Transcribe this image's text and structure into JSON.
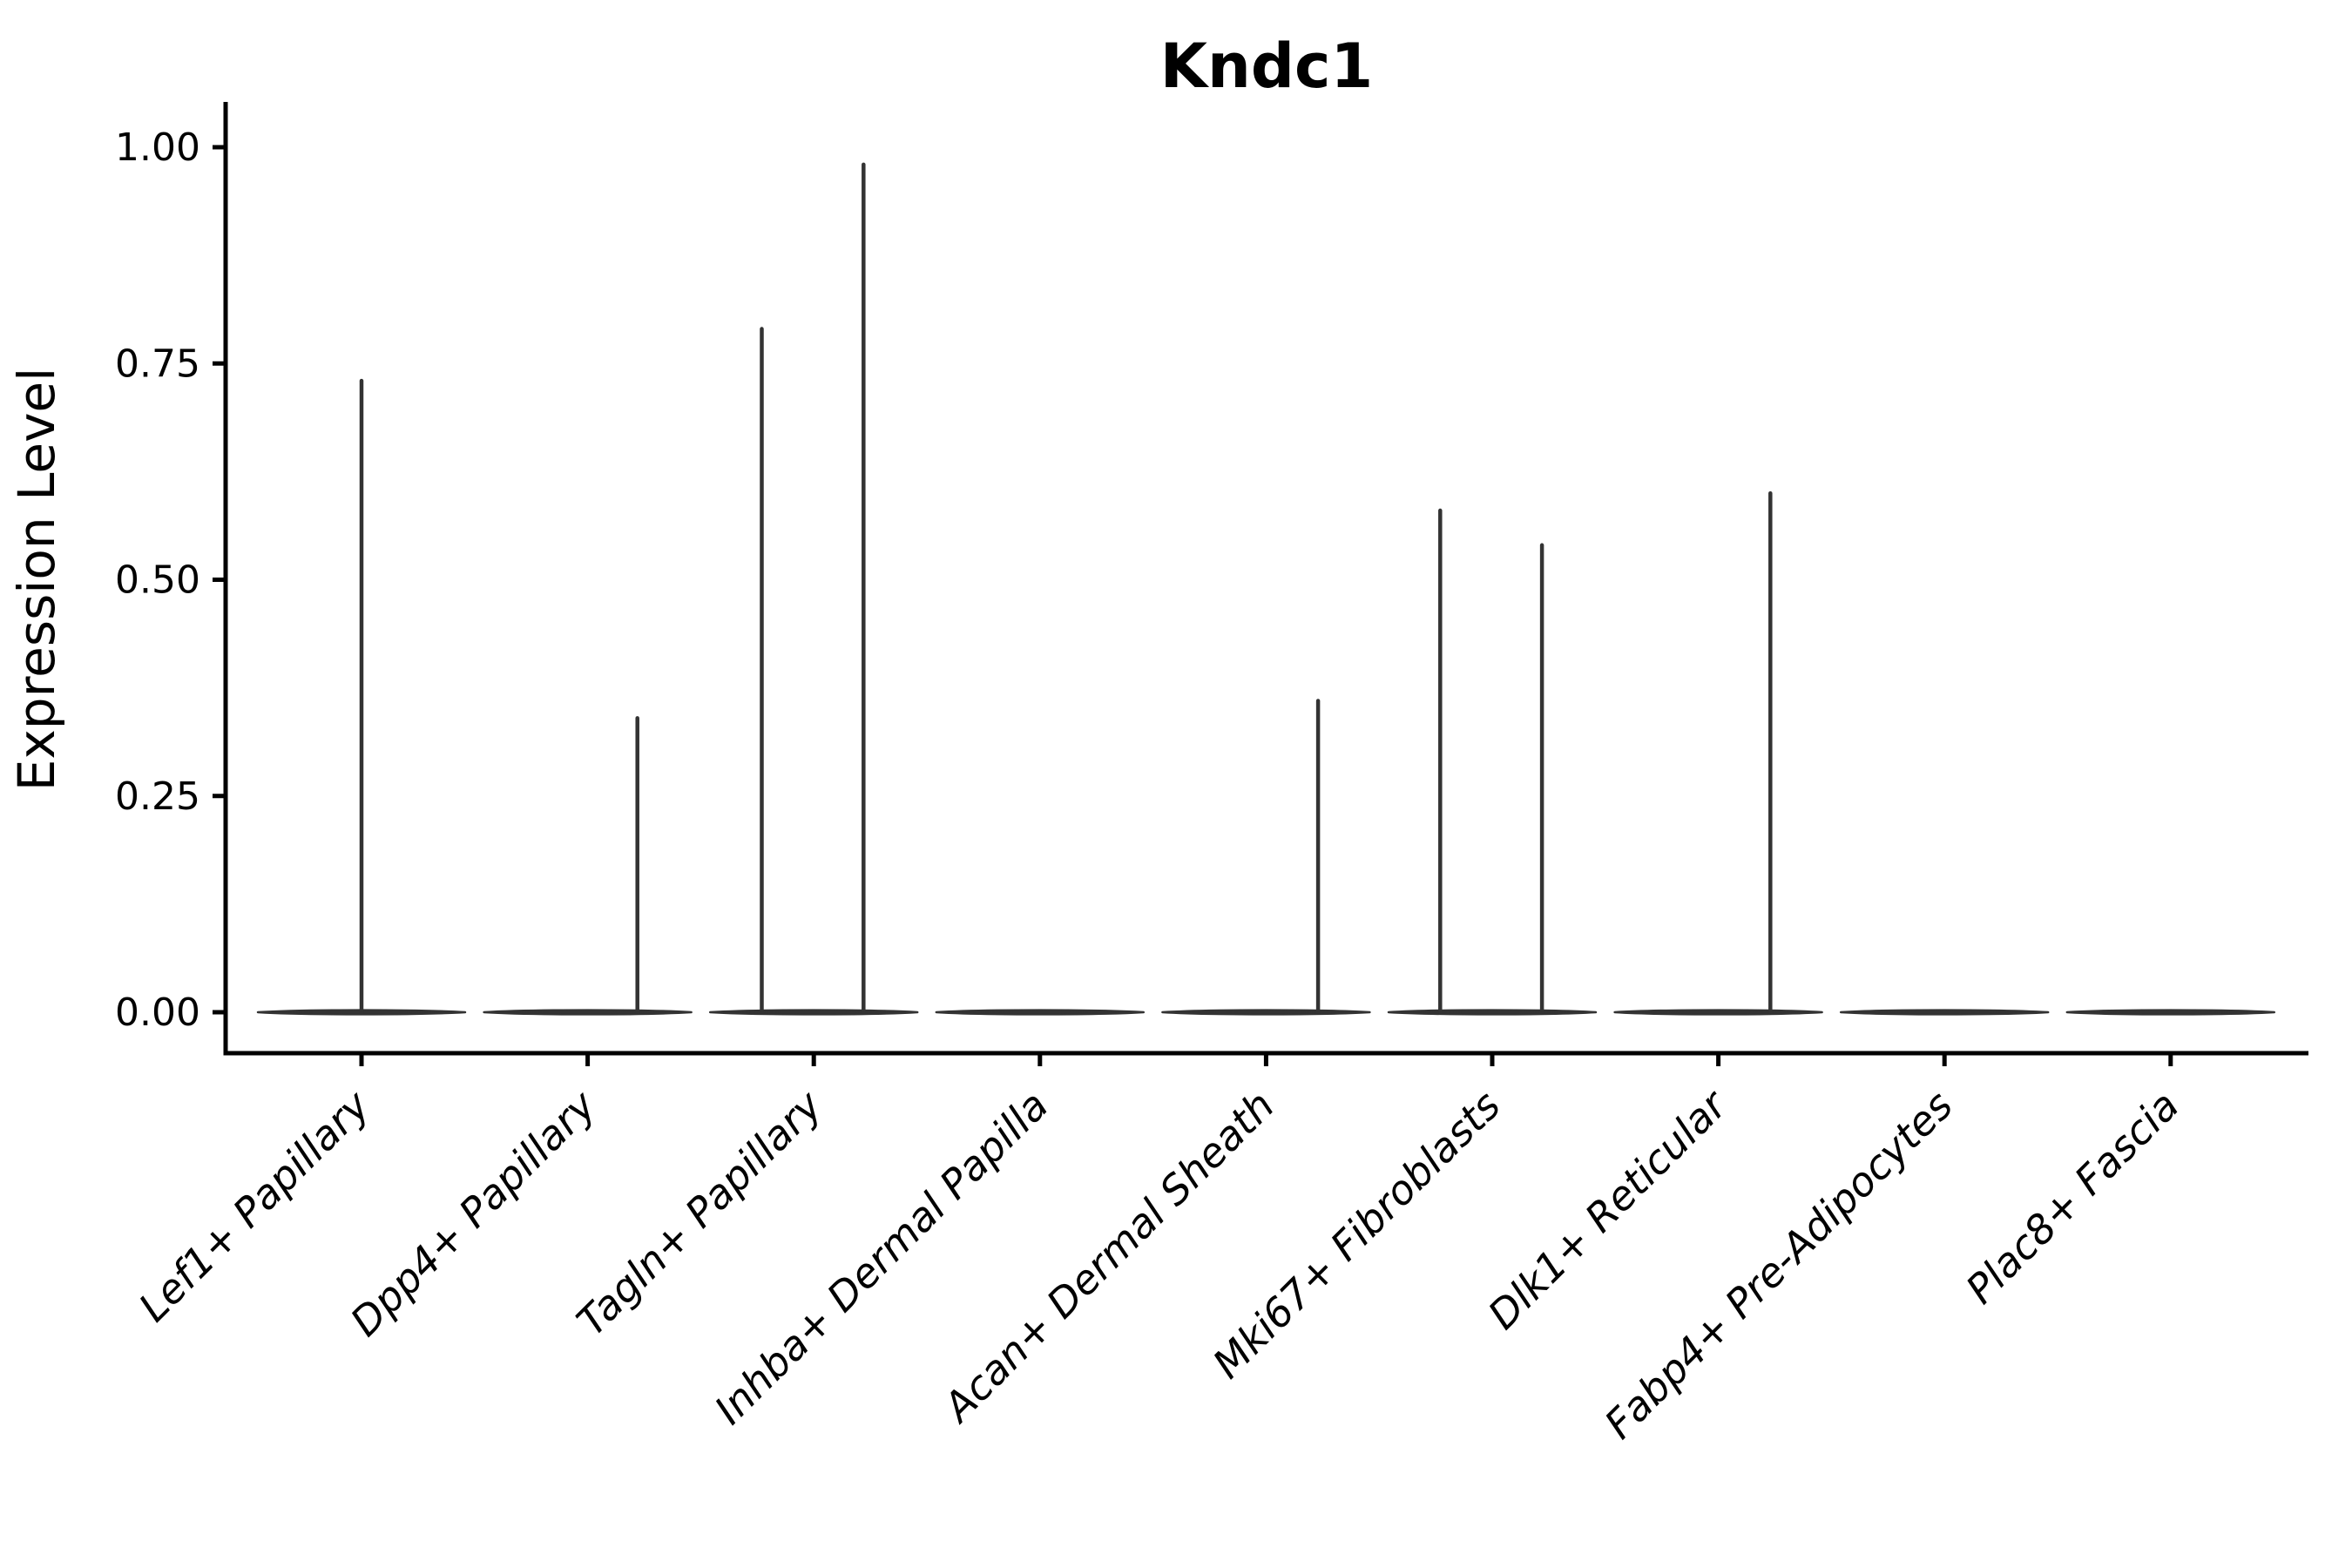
{
  "page": {
    "background": "#ffffff"
  },
  "chart_data": {
    "type": "violin",
    "title": "Kndc1",
    "title_style": "bold",
    "xlabel": "",
    "ylabel": "Expression Level",
    "ylim": [
      0,
      1.0
    ],
    "grid": false,
    "legend": null,
    "y_ticks": [
      {
        "value": 0.0,
        "label": "0.00"
      },
      {
        "value": 0.25,
        "label": "0.25"
      },
      {
        "value": 0.5,
        "label": "0.50"
      },
      {
        "value": 0.75,
        "label": "0.75"
      },
      {
        "value": 1.0,
        "label": "1.00"
      }
    ],
    "categories": [
      "Lef1+ Papillary",
      "Dpp4+ Papillary",
      "Tagln+ Papillary",
      "Inhba+ Dermal Papilla",
      "Acan+ Dermal Sheath",
      "Mki67+ Fibroblasts",
      "Dlk1+ Reticular",
      "Fabp4+ Pre-Adipocytes",
      "Plac8+ Fascia"
    ],
    "violins": [
      {
        "category": "Lef1+ Papillary",
        "zero_bulk": true,
        "spikes": [
          {
            "value": 0.73,
            "offset_frac": 0.0
          }
        ]
      },
      {
        "category": "Dpp4+ Papillary",
        "zero_bulk": true,
        "spikes": [
          {
            "value": 0.34,
            "offset_frac": 0.22
          }
        ]
      },
      {
        "category": "Tagln+ Papillary",
        "zero_bulk": true,
        "spikes": [
          {
            "value": 0.79,
            "offset_frac": -0.23
          },
          {
            "value": 0.98,
            "offset_frac": 0.22
          }
        ]
      },
      {
        "category": "Inhba+ Dermal Papilla",
        "zero_bulk": true,
        "spikes": []
      },
      {
        "category": "Acan+ Dermal Sheath",
        "zero_bulk": true,
        "spikes": [
          {
            "value": 0.36,
            "offset_frac": 0.23
          }
        ]
      },
      {
        "category": "Mki67+ Fibroblasts",
        "zero_bulk": true,
        "spikes": [
          {
            "value": 0.58,
            "offset_frac": -0.23
          },
          {
            "value": 0.54,
            "offset_frac": 0.22
          }
        ]
      },
      {
        "category": "Dlk1+ Reticular",
        "zero_bulk": true,
        "spikes": [
          {
            "value": 0.6,
            "offset_frac": 0.23
          }
        ]
      },
      {
        "category": "Fabp4+ Pre-Adipocytes",
        "zero_bulk": true,
        "spikes": []
      },
      {
        "category": "Plac8+ Fascia",
        "zero_bulk": true,
        "spikes": []
      }
    ],
    "colors": {
      "violin": "#333333",
      "axis": "#000000",
      "text": "#000000"
    }
  }
}
